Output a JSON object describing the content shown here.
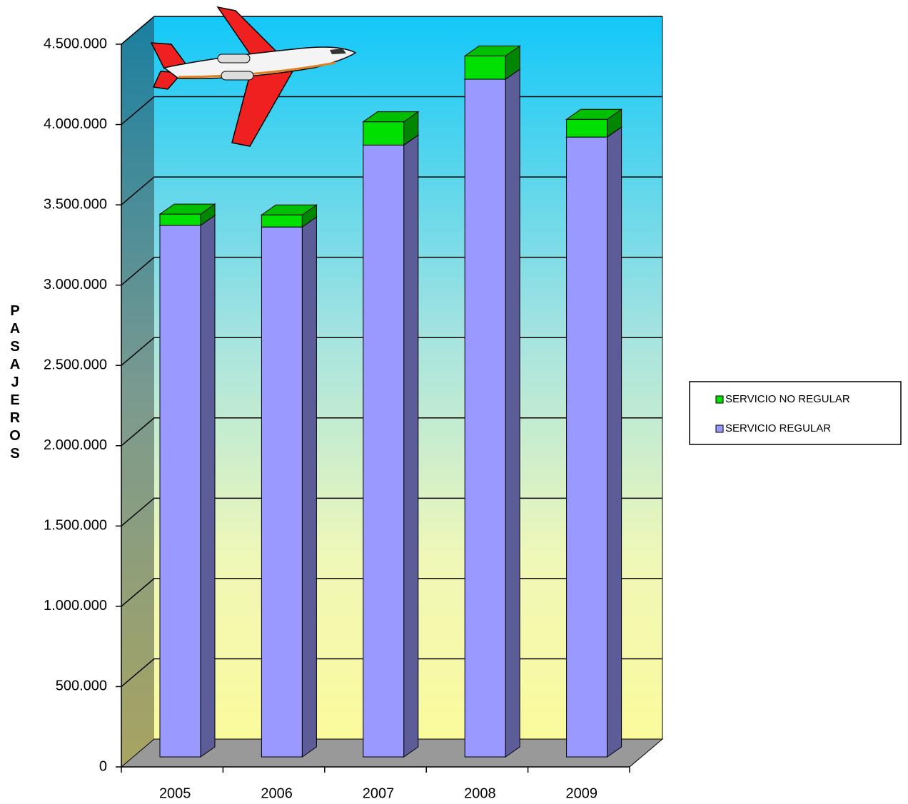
{
  "chart_data": {
    "type": "bar3d-stacked",
    "y_label": "PASAJEROS",
    "categories": [
      "2005",
      "2006",
      "2007",
      "2008",
      "2009"
    ],
    "series": [
      {
        "name": "SERVICIO REGULAR",
        "color": "#9999ff",
        "values": [
          3310000,
          3300000,
          3810000,
          4220000,
          3860000
        ]
      },
      {
        "name": "SERVICIO NO REGULAR",
        "color": "#00e000",
        "values": [
          70000,
          75000,
          145000,
          145000,
          110000
        ]
      }
    ],
    "ylim": [
      0,
      4500000
    ],
    "yticks": [
      0,
      {
        "value": 500000,
        "label": "500.000"
      },
      {
        "value": 1000000,
        "label": "1.000.000"
      },
      {
        "value": 1500000,
        "label": "1.500.000"
      },
      {
        "value": 2000000,
        "label": "2.000.000"
      },
      {
        "value": 2500000,
        "label": "2.500.000"
      },
      {
        "value": 3000000,
        "label": "3.000.000"
      },
      {
        "value": 3500000,
        "label": "3.500.000"
      },
      {
        "value": 4000000,
        "label": "4.000.000"
      },
      {
        "value": 4500000,
        "label": "4.500.000"
      }
    ],
    "grid": true,
    "legend": "right"
  }
}
